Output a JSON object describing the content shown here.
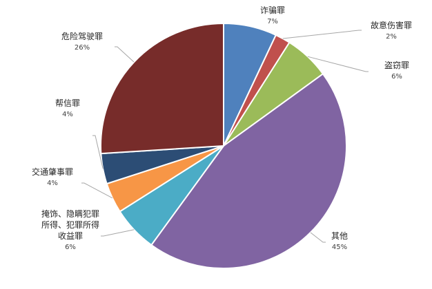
{
  "chart_data": {
    "type": "pie",
    "title": "",
    "start_angle_deg": 0,
    "direction": "clockwise",
    "legend": "none",
    "unit": "%",
    "slices": [
      {
        "label": "诈骗罪",
        "label_lines": [
          "诈骗罪"
        ],
        "value": 7,
        "pct_text": "7%",
        "color": "#4f81bd"
      },
      {
        "label": "故意伤害罪",
        "label_lines": [
          "故意伤害罪"
        ],
        "value": 2,
        "pct_text": "2%",
        "color": "#c0504d"
      },
      {
        "label": "盗窃罪",
        "label_lines": [
          "盗窃罪"
        ],
        "value": 6,
        "pct_text": "6%",
        "color": "#9bbb59"
      },
      {
        "label": "其他",
        "label_lines": [
          "其他"
        ],
        "value": 45,
        "pct_text": "45%",
        "color": "#8064a2"
      },
      {
        "label": "掩饰、隐瞒犯罪所得、犯罪所得收益罪",
        "label_lines": [
          "掩饰、隐瞒犯罪",
          "所得、犯罪所得",
          "收益罪"
        ],
        "value": 6,
        "pct_text": "6%",
        "color": "#4bacc6"
      },
      {
        "label": "交通肇事罪",
        "label_lines": [
          "交通肇事罪"
        ],
        "value": 4,
        "pct_text": "4%",
        "color": "#f79646"
      },
      {
        "label": "帮信罪",
        "label_lines": [
          "帮信罪"
        ],
        "value": 4,
        "pct_text": "4%",
        "color": "#2c4d75"
      },
      {
        "label": "危险驾驶罪",
        "label_lines": [
          "危险驾驶罪"
        ],
        "value": 26,
        "pct_text": "26%",
        "color": "#772c2a"
      }
    ]
  }
}
